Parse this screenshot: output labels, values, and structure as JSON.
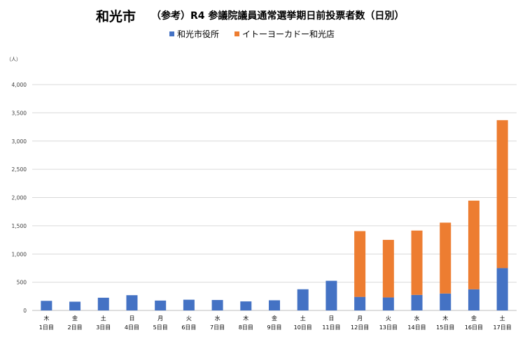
{
  "title": {
    "city": "和光市",
    "subtitle": "（参考）R4 参議院議員通常選挙期日前投票者数（日別）"
  },
  "unit_label": "（人）",
  "colors": {
    "city_hall": "#4472C4",
    "ito_yokado": "#ED7D31",
    "grid": "#D9D9D9",
    "axis": "#BFBFBF"
  },
  "chart_data": {
    "type": "bar",
    "stacked": true,
    "title": "和光市　（参考）R4 参議院議員通常選挙期日前投票者数（日別）",
    "ylabel": "（人）",
    "ylim": [
      0,
      4000
    ],
    "yticks": [
      0,
      500,
      1000,
      1500,
      2000,
      2500,
      3000,
      3500,
      4000
    ],
    "ytick_labels": [
      "0",
      "500",
      "1,000",
      "1,500",
      "2,000",
      "2,500",
      "3,000",
      "3,500",
      "4,000"
    ],
    "grid": true,
    "legend_position": "top",
    "categories": [
      {
        "weekday": "木",
        "day": "1日目"
      },
      {
        "weekday": "金",
        "day": "2日目"
      },
      {
        "weekday": "土",
        "day": "3日目"
      },
      {
        "weekday": "日",
        "day": "4日目"
      },
      {
        "weekday": "月",
        "day": "5日目"
      },
      {
        "weekday": "火",
        "day": "6日目"
      },
      {
        "weekday": "水",
        "day": "7日目"
      },
      {
        "weekday": "木",
        "day": "8日目"
      },
      {
        "weekday": "金",
        "day": "9日目"
      },
      {
        "weekday": "土",
        "day": "10日目"
      },
      {
        "weekday": "日",
        "day": "11日目"
      },
      {
        "weekday": "月",
        "day": "12日目"
      },
      {
        "weekday": "火",
        "day": "13日目"
      },
      {
        "weekday": "水",
        "day": "14日目"
      },
      {
        "weekday": "木",
        "day": "15日目"
      },
      {
        "weekday": "金",
        "day": "16日目"
      },
      {
        "weekday": "土",
        "day": "17日目"
      }
    ],
    "series": [
      {
        "name": "和光市役所",
        "color": "#4472C4",
        "values": [
          170,
          155,
          225,
          270,
          175,
          190,
          185,
          160,
          180,
          375,
          525,
          240,
          230,
          275,
          300,
          375,
          750
        ]
      },
      {
        "name": "イトーヨーカドー和光店",
        "color": "#ED7D31",
        "values": [
          0,
          0,
          0,
          0,
          0,
          0,
          0,
          0,
          0,
          0,
          0,
          1165,
          1020,
          1140,
          1255,
          1570,
          2620
        ]
      }
    ]
  }
}
